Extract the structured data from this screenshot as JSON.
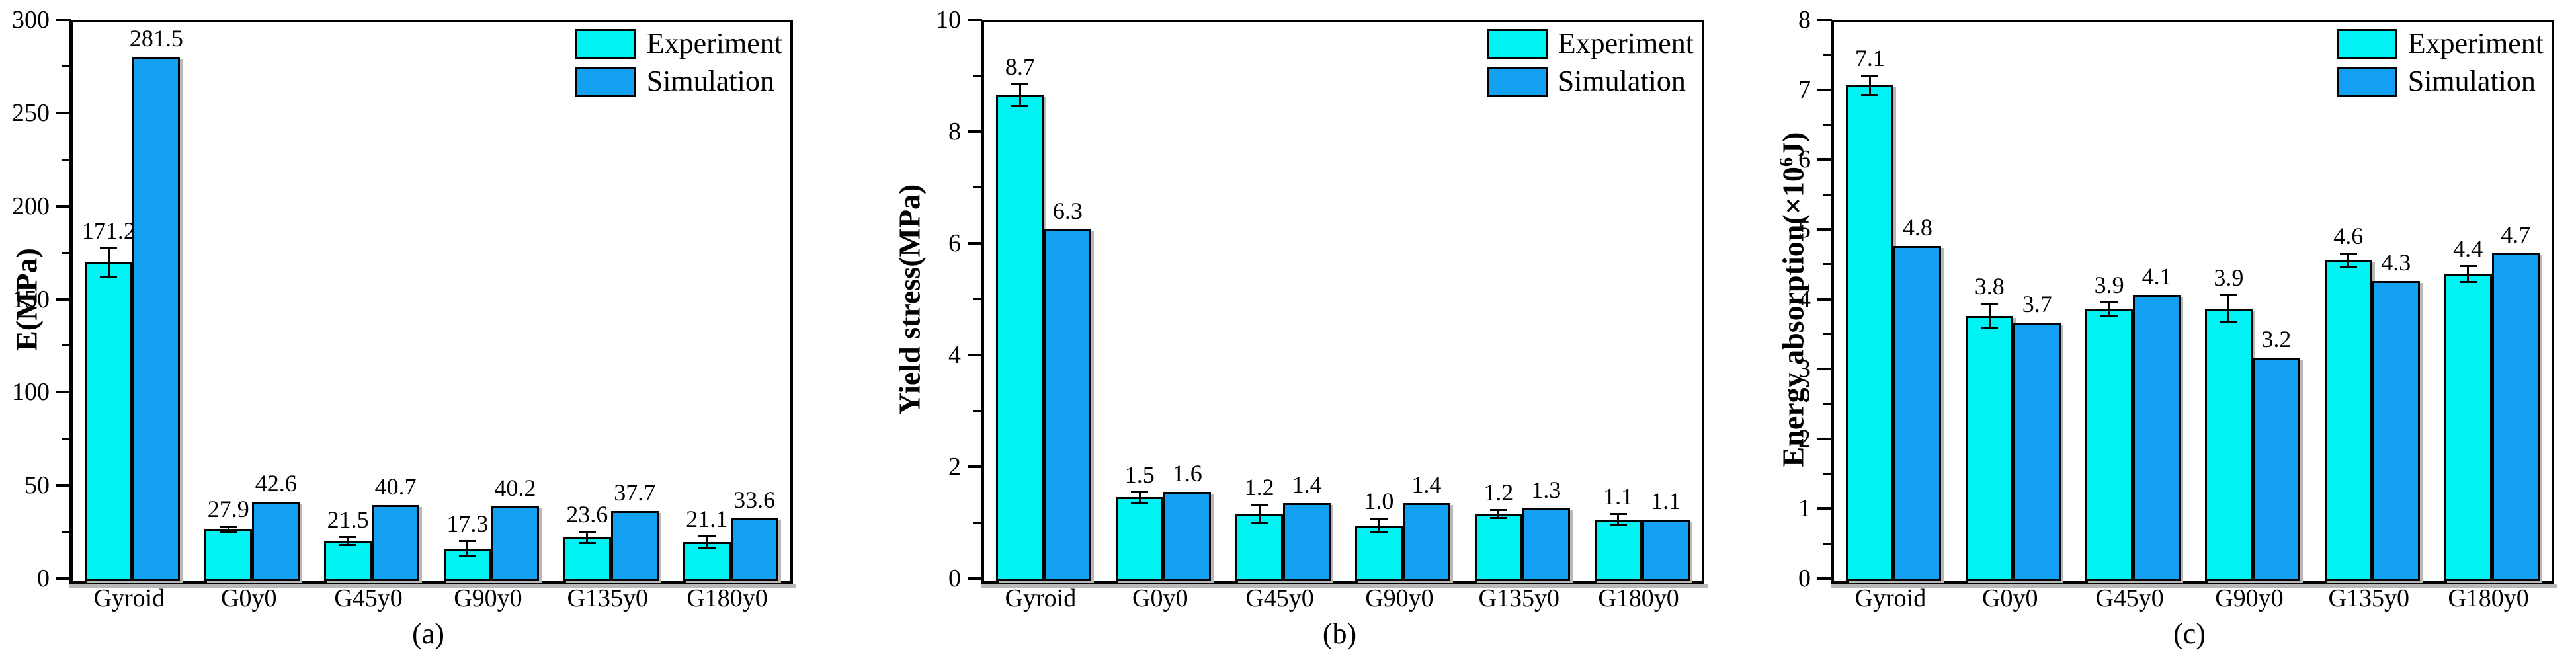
{
  "legend": {
    "items": [
      {
        "label": "Experiment",
        "color": "#00F2F2"
      },
      {
        "label": "Simulation",
        "color": "#14A0F2"
      }
    ]
  },
  "chart_data": [
    {
      "id": "a",
      "type": "bar",
      "caption": "(a)",
      "ylabel": "E(MPa)",
      "ylabel_parts": [
        {
          "text": "E(MPa)"
        }
      ],
      "ylim": [
        0,
        300
      ],
      "ytick_major_step": 50,
      "ytick_minor_step": 25,
      "ytick_labels": [
        "0",
        "50",
        "100",
        "150",
        "200",
        "250",
        "300"
      ],
      "grid": false,
      "legend_position": "top-right",
      "categories": [
        "Gyroid",
        "G0y0",
        "G45y0",
        "G90y0",
        "G135y0",
        "G180y0"
      ],
      "series": [
        {
          "name": "Experiment",
          "values": [
            171.2,
            27.9,
            21.5,
            17.3,
            23.6,
            21.1
          ],
          "value_labels": [
            "171.2",
            "27.9",
            "21.5",
            "17.3",
            "23.6",
            "21.1"
          ],
          "errors": [
            7,
            1,
            1.5,
            3.5,
            2.5,
            2.5
          ]
        },
        {
          "name": "Simulation",
          "values": [
            281.5,
            42.6,
            40.7,
            40.2,
            37.7,
            33.6
          ],
          "value_labels": [
            "281.5",
            "42.6",
            "40.7",
            "40.2",
            "37.7",
            "33.6"
          ],
          "errors": null
        }
      ]
    },
    {
      "id": "b",
      "type": "bar",
      "caption": "(b)",
      "ylabel": "Yield stress(MPa)",
      "ylabel_parts": [
        {
          "text": "Yield stress(MPa)"
        }
      ],
      "ylim": [
        0,
        10
      ],
      "ytick_major_step": 2,
      "ytick_minor_step": 1,
      "ytick_labels": [
        "0",
        "2",
        "4",
        "6",
        "8",
        "10"
      ],
      "grid": false,
      "legend_position": "top-right",
      "categories": [
        "Gyroid",
        "G0y0",
        "G45y0",
        "G90y0",
        "G135y0",
        "G180y0"
      ],
      "series": [
        {
          "name": "Experiment",
          "values": [
            8.7,
            1.5,
            1.2,
            1.0,
            1.2,
            1.1
          ],
          "value_labels": [
            "8.7",
            "1.5",
            "1.2",
            "1.0",
            "1.2",
            "1.1"
          ],
          "errors": [
            0.18,
            0.08,
            0.15,
            0.1,
            0.05,
            0.08
          ]
        },
        {
          "name": "Simulation",
          "values": [
            6.3,
            1.6,
            1.4,
            1.4,
            1.3,
            1.1
          ],
          "value_labels": [
            "6.3",
            "1.6",
            "1.4",
            "1.4",
            "1.3",
            "1.1"
          ],
          "errors": null
        }
      ]
    },
    {
      "id": "c",
      "type": "bar",
      "caption": "(c)",
      "ylabel": "Energy absorption(×10⁶J)",
      "ylabel_parts": [
        {
          "text": "Energy absorption(×10"
        },
        {
          "text": "6",
          "sup": true
        },
        {
          "text": "J)"
        }
      ],
      "ylim": [
        0,
        8
      ],
      "ytick_major_step": 1,
      "ytick_minor_step": 0.5,
      "ytick_labels": [
        "0",
        "1",
        "2",
        "3",
        "4",
        "5",
        "6",
        "7",
        "8"
      ],
      "grid": false,
      "legend_position": "top-right",
      "categories": [
        "Gyroid",
        "G0y0",
        "G45y0",
        "G90y0",
        "G135y0",
        "G180y0"
      ],
      "series": [
        {
          "name": "Experiment",
          "values": [
            7.1,
            3.8,
            3.9,
            3.9,
            4.6,
            4.4
          ],
          "value_labels": [
            "7.1",
            "3.8",
            "3.9",
            "3.9",
            "4.6",
            "4.4"
          ],
          "errors": [
            0.12,
            0.16,
            0.08,
            0.18,
            0.08,
            0.1
          ]
        },
        {
          "name": "Simulation",
          "values": [
            4.8,
            3.7,
            4.1,
            3.2,
            4.3,
            4.7
          ],
          "value_labels": [
            "4.8",
            "3.7",
            "4.1",
            "3.2",
            "4.3",
            "4.7"
          ],
          "errors": null
        }
      ]
    }
  ]
}
